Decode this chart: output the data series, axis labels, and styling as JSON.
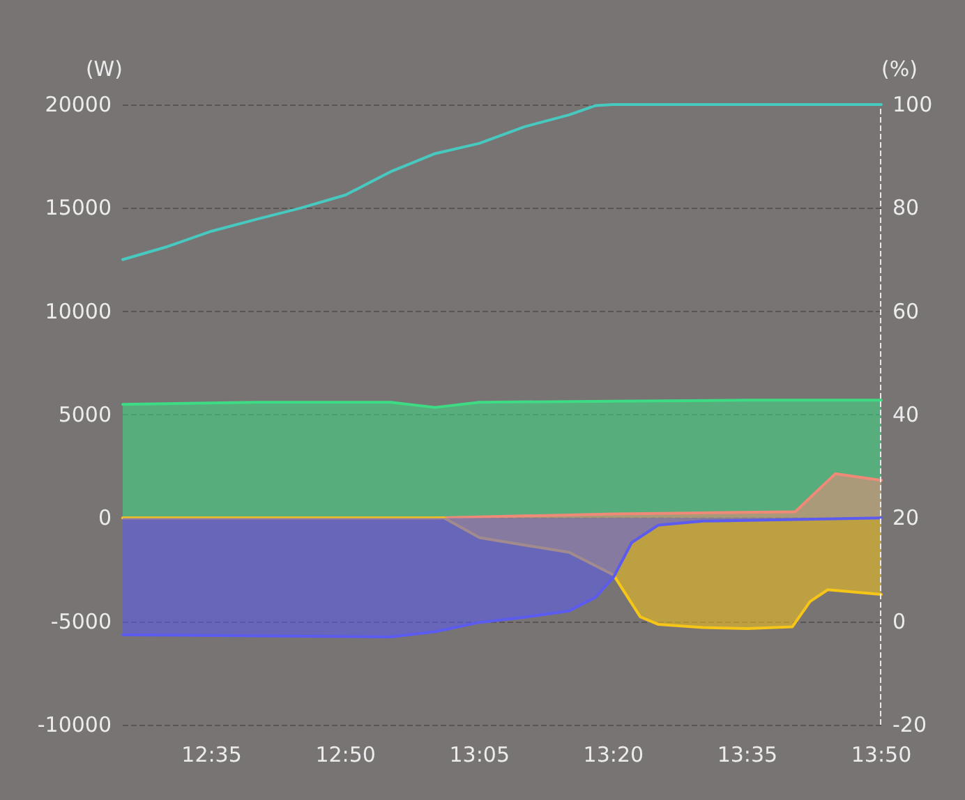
{
  "chart_data": {
    "type": "area",
    "ylabel": "(W)",
    "y2label": "(%)",
    "xlim": [
      12.417,
      13.833
    ],
    "xticks": [
      {
        "value": 12.583,
        "label": "12:35"
      },
      {
        "value": 12.833,
        "label": "12:50"
      },
      {
        "value": 13.083,
        "label": "13:05"
      },
      {
        "value": 13.333,
        "label": "13:20"
      },
      {
        "value": 13.583,
        "label": "13:35"
      },
      {
        "value": 13.833,
        "label": "13:50"
      }
    ],
    "ylim": [
      -10000,
      20000
    ],
    "yticks": [
      -10000,
      -5000,
      0,
      5000,
      10000,
      15000,
      20000
    ],
    "y2lim": [
      -20,
      100
    ],
    "y2ticks": [
      -20,
      0,
      20,
      40,
      60,
      80,
      100
    ],
    "grid": "y",
    "marker": "none",
    "line_style": "solid",
    "ref_lines": [
      {
        "axis": "x",
        "value": 13.833,
        "color": "#e8e8e8",
        "line_style": "dashed"
      }
    ],
    "series": [
      {
        "color": "#3ddc84",
        "x": [
          12.417,
          12.667,
          12.917,
          13.0,
          13.083,
          13.333,
          13.583,
          13.833
        ],
        "values": [
          5500,
          5600,
          5600,
          5350,
          5600,
          5650,
          5700,
          5700
        ]
      },
      {
        "color": "#f08a78",
        "x": [
          12.417,
          12.667,
          12.917,
          13.0,
          13.083,
          13.167,
          13.25,
          13.333,
          13.5,
          13.667,
          13.672,
          13.747,
          13.833
        ],
        "values": [
          0,
          0,
          0,
          0,
          50,
          100,
          150,
          200,
          250,
          300,
          300,
          2140,
          1820
        ]
      },
      {
        "color": "#f5c518",
        "x": [
          12.417,
          12.667,
          12.917,
          13.017,
          13.083,
          13.167,
          13.25,
          13.333,
          13.383,
          13.417,
          13.5,
          13.583,
          13.667,
          13.7,
          13.733,
          13.833
        ],
        "values": [
          0,
          0,
          0,
          0,
          -950,
          -1310,
          -1660,
          -2750,
          -4780,
          -5150,
          -5300,
          -5350,
          -5260,
          -4040,
          -3470,
          -3700
        ]
      },
      {
        "color": "#5b5bf0",
        "x": [
          12.417,
          12.667,
          12.917,
          13.0,
          13.083,
          13.167,
          13.25,
          13.3,
          13.333,
          13.367,
          13.417,
          13.5,
          13.833
        ],
        "values": [
          -5650,
          -5700,
          -5750,
          -5500,
          -5050,
          -4800,
          -4500,
          -3830,
          -2870,
          -1190,
          -340,
          -150,
          0
        ]
      },
      {
        "type": "line",
        "axis": "y2",
        "color": "#47c9c0",
        "x": [
          12.417,
          12.5,
          12.583,
          12.667,
          12.75,
          12.833,
          12.917,
          13.0,
          13.083,
          13.167,
          13.25,
          13.3,
          13.333,
          13.417,
          13.5,
          13.583,
          13.667,
          13.75,
          13.833
        ],
        "values": [
          70,
          72.5,
          75.5,
          77.8,
          80,
          82.5,
          87,
          90.5,
          92.5,
          95.7,
          98,
          99.8,
          100,
          100,
          100,
          100,
          100,
          100,
          100
        ]
      }
    ]
  }
}
